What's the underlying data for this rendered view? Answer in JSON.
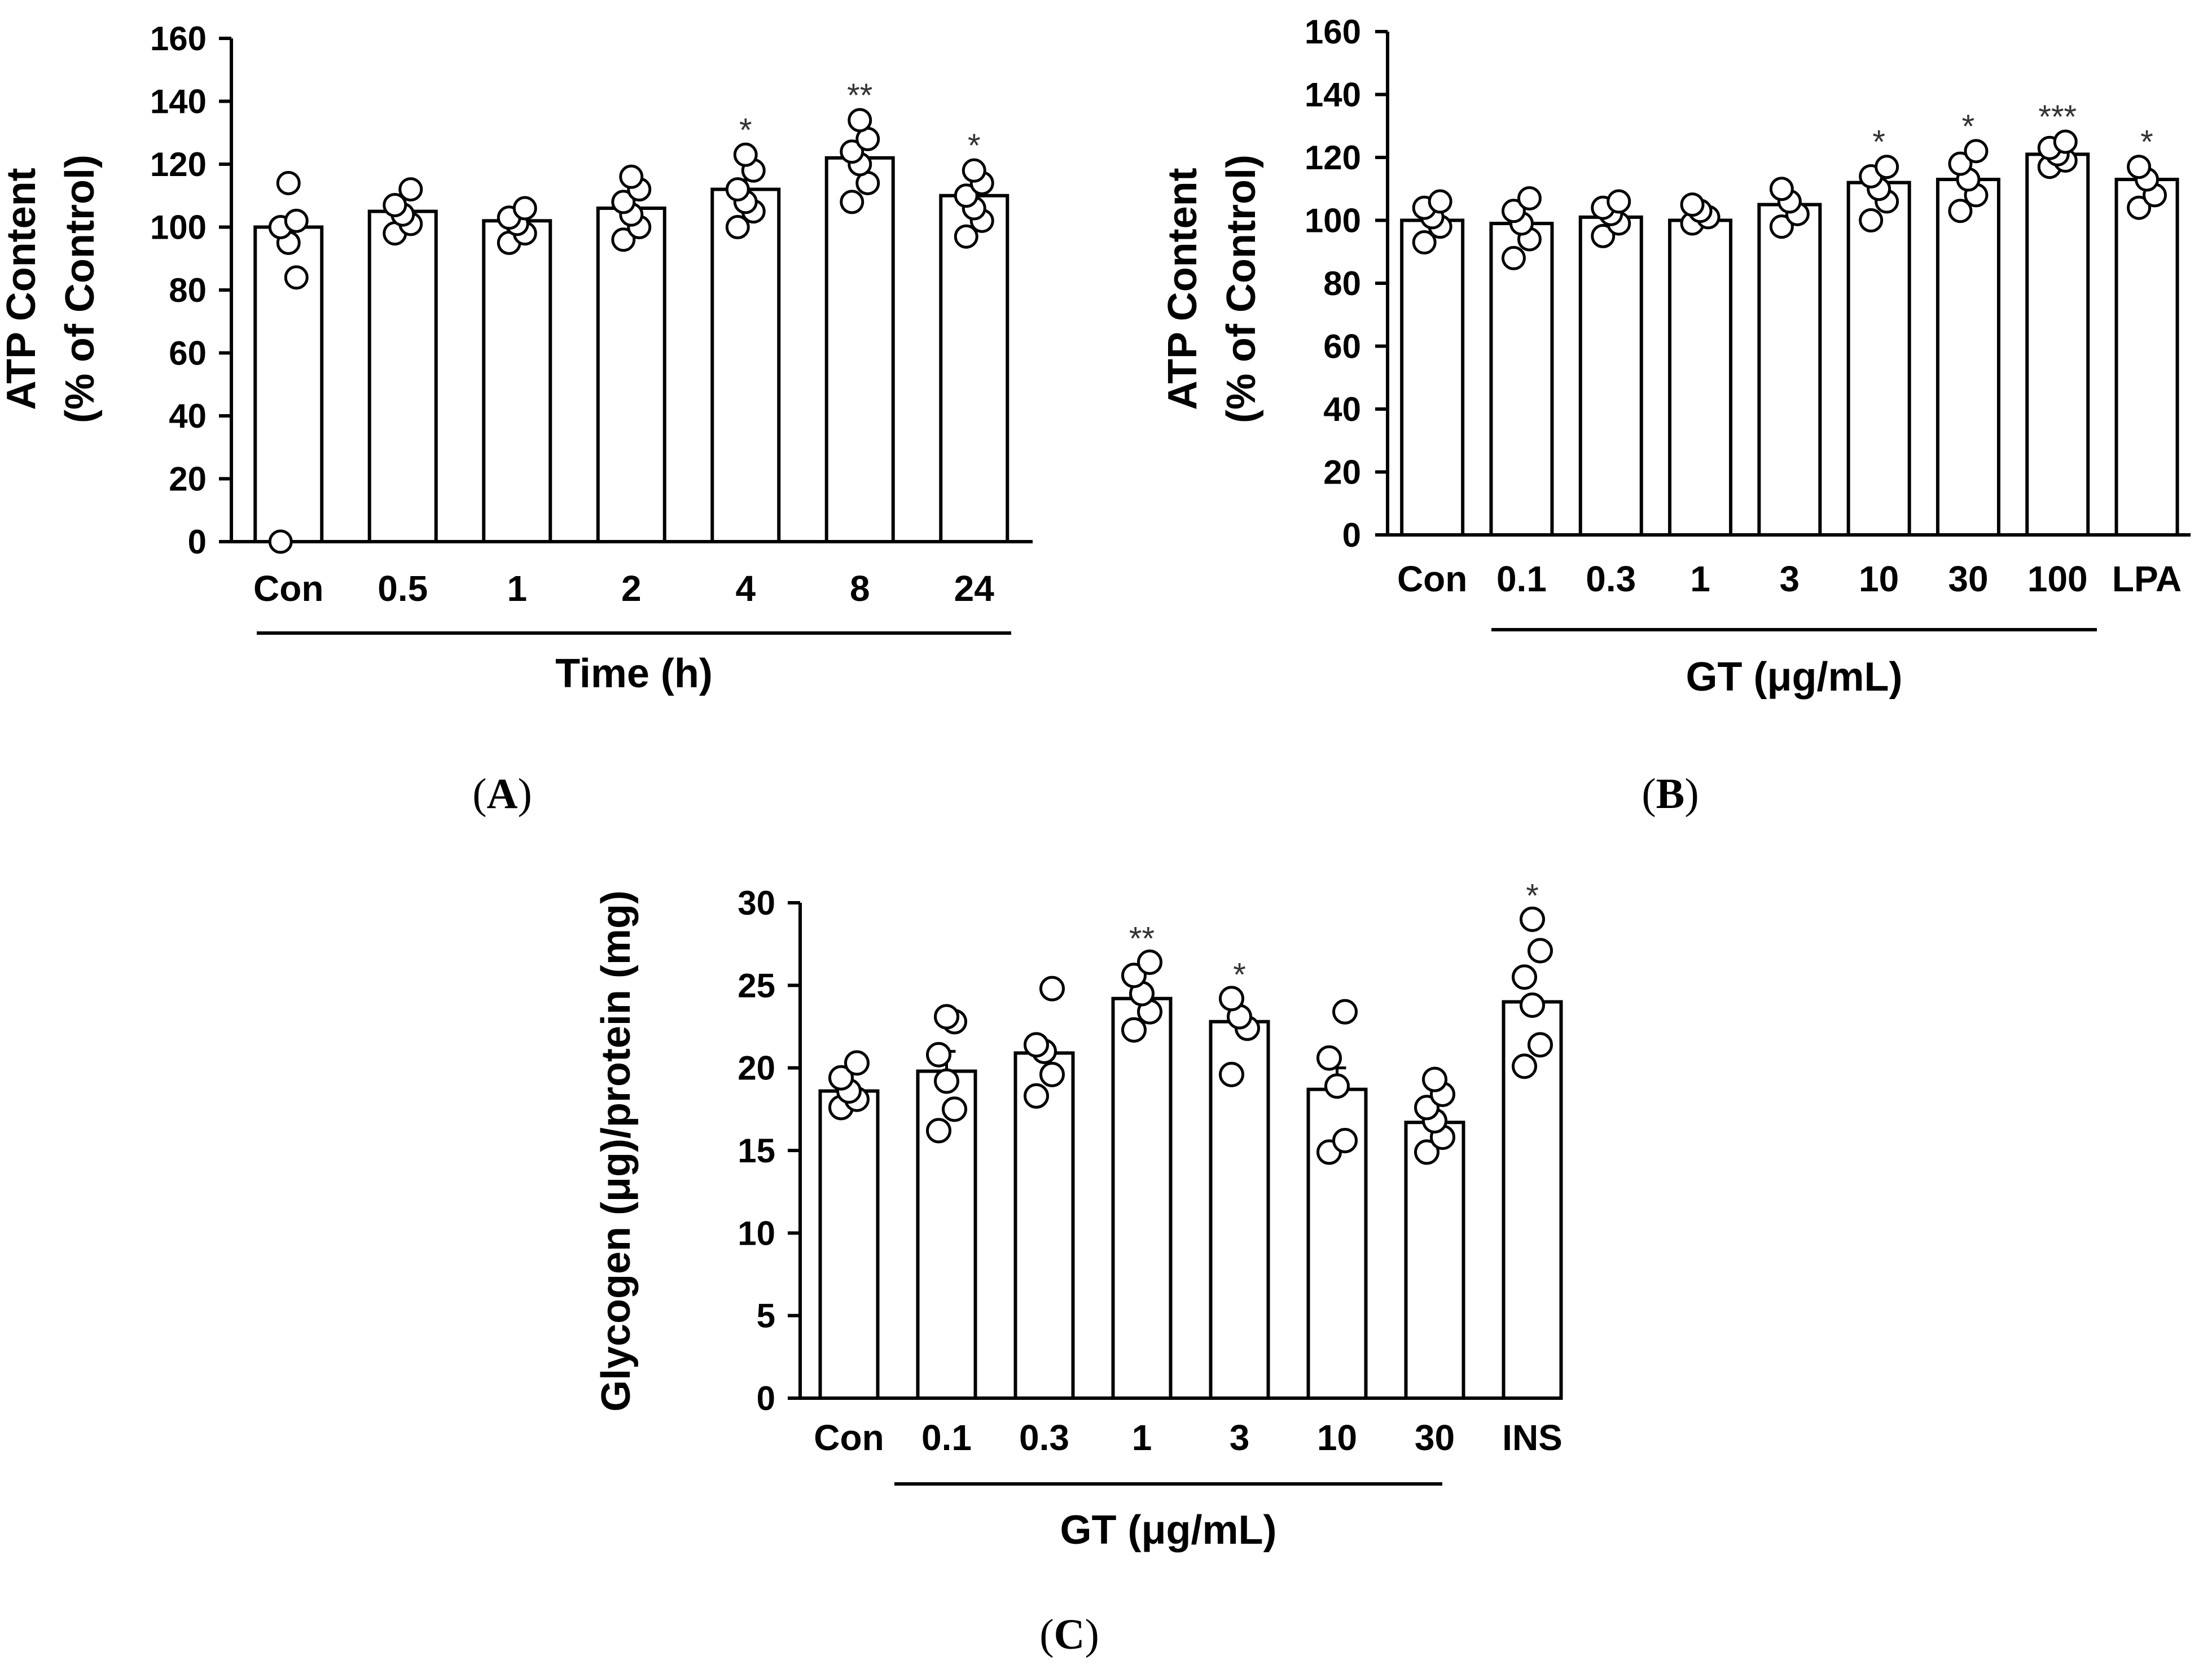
{
  "chart_data": [
    {
      "panel": "A",
      "type": "bar",
      "ylabel_line1": "ATP Content",
      "ylabel_line2": "(% of Control)",
      "ylim": [
        0,
        160
      ],
      "yticks": [
        "0",
        "20",
        "40",
        "60",
        "80",
        "100",
        "120",
        "140",
        "160"
      ],
      "categories": [
        "Con",
        "0.5",
        "1",
        "2",
        "4",
        "8",
        "24"
      ],
      "values": [
        100,
        105,
        102,
        106,
        112,
        122,
        110
      ],
      "errors": [
        0,
        0,
        0,
        0,
        3,
        3,
        3
      ],
      "significance": [
        "",
        "",
        "",
        "",
        "*",
        "**",
        "*"
      ],
      "points": [
        [
          0,
          84,
          95,
          100,
          102,
          114
        ],
        [
          98,
          101,
          104,
          107,
          112
        ],
        [
          95,
          98,
          101,
          103,
          106
        ],
        [
          96,
          100,
          104,
          108,
          112,
          116
        ],
        [
          100,
          105,
          108,
          112,
          118,
          123
        ],
        [
          108,
          114,
          120,
          124,
          128,
          134
        ],
        [
          97,
          102,
          106,
          110,
          114,
          118
        ]
      ],
      "group_label": "Time (h)",
      "group_span": [
        0,
        6
      ],
      "panel_label": "A"
    },
    {
      "panel": "B",
      "type": "bar",
      "ylabel_line1": "ATP Content",
      "ylabel_line2": "(% of Control)",
      "ylim": [
        0,
        160
      ],
      "yticks": [
        "0",
        "20",
        "40",
        "60",
        "80",
        "100",
        "120",
        "140",
        "160"
      ],
      "categories": [
        "Con",
        "0.1",
        "0.3",
        "1",
        "3",
        "10",
        "30",
        "100",
        "LPA"
      ],
      "values": [
        100,
        99,
        101,
        100,
        105,
        112,
        113,
        121,
        113
      ],
      "errors": [
        0,
        0,
        0,
        0,
        0,
        0,
        0,
        0,
        0
      ],
      "significance": [
        "",
        "",
        "",
        "",
        "",
        "*",
        "*",
        "***",
        "*"
      ],
      "points": [
        [
          93,
          98,
          101,
          104,
          106
        ],
        [
          88,
          94,
          99,
          103,
          107
        ],
        [
          95,
          99,
          102,
          104,
          106
        ],
        [
          99,
          101,
          103,
          105
        ],
        [
          98,
          102,
          106,
          110
        ],
        [
          100,
          106,
          110,
          114,
          117
        ],
        [
          103,
          108,
          113,
          118,
          122
        ],
        [
          117,
          119,
          121,
          123,
          125
        ],
        [
          104,
          108,
          113,
          117
        ]
      ],
      "group_label": "GT (μg/mL)",
      "group_span": [
        1,
        7
      ],
      "panel_label": "B"
    },
    {
      "panel": "C",
      "type": "bar",
      "ylabel": "Glycogen (μg)/protein (mg)",
      "ylim": [
        0,
        30
      ],
      "yticks": [
        "0",
        "5",
        "10",
        "15",
        "20",
        "25",
        "30"
      ],
      "categories": [
        "Con",
        "0.1",
        "0.3",
        "1",
        "3",
        "10",
        "30",
        "INS"
      ],
      "values": [
        18.6,
        19.8,
        20.9,
        24.2,
        22.8,
        18.7,
        16.7,
        24.0
      ],
      "errors": [
        0,
        1.2,
        0.5,
        0.7,
        0.5,
        1.3,
        0.6,
        0
      ],
      "significance": [
        "",
        "",
        "",
        "**",
        "*",
        "",
        "",
        "*"
      ],
      "points": [
        [
          17.6,
          18.1,
          18.6,
          19.4,
          20.3
        ],
        [
          16.2,
          17.5,
          19.2,
          20.8,
          22.8,
          23.1
        ],
        [
          18.3,
          19.6,
          21.0,
          21.4,
          24.8
        ],
        [
          22.3,
          23.4,
          24.5,
          25.6,
          26.4
        ],
        [
          19.6,
          22.4,
          23.1,
          24.2
        ],
        [
          14.9,
          15.6,
          18.9,
          20.6,
          23.4
        ],
        [
          14.9,
          15.8,
          16.8,
          17.6,
          18.4,
          19.3
        ],
        [
          20.1,
          21.4,
          23.8,
          25.5,
          27.1,
          29.0
        ]
      ],
      "group_label": "GT (μg/mL)",
      "group_span": [
        1,
        6
      ],
      "panel_label": "C"
    }
  ]
}
